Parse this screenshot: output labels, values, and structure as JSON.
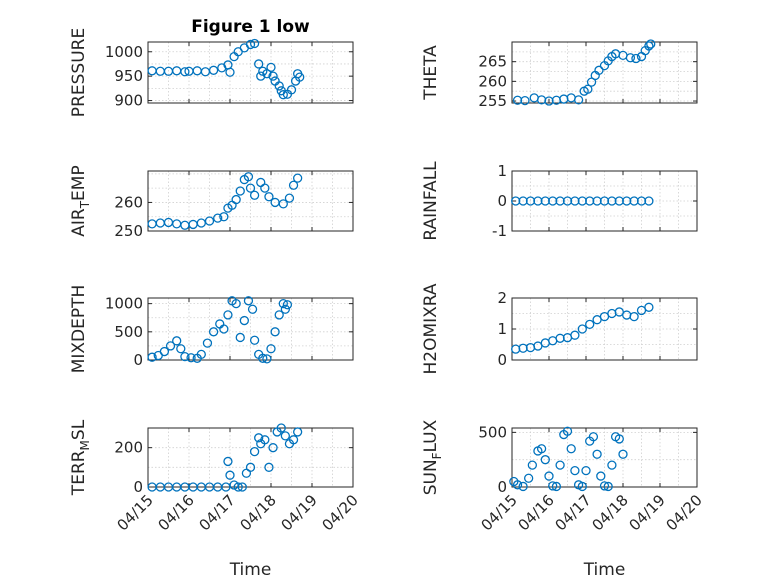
{
  "chart_data": [
    {
      "type": "scatter",
      "title": "Figure 1 low",
      "ylabel": "PRESSURE",
      "ylim": [
        895,
        1020
      ],
      "yticks": [
        900,
        950,
        1000
      ],
      "ytick_labels": [
        "900",
        "950",
        "1000"
      ],
      "xlim": [
        0,
        5
      ],
      "x_date_origin": "04/15",
      "xticks": [
        0,
        1,
        2,
        3,
        4,
        5
      ],
      "xtick_labels": [],
      "grid": true,
      "marker": "circle",
      "color": "#0072bd",
      "points": [
        [
          0.1,
          961
        ],
        [
          0.3,
          960
        ],
        [
          0.5,
          960
        ],
        [
          0.7,
          961
        ],
        [
          0.9,
          959
        ],
        [
          1.0,
          960
        ],
        [
          1.2,
          961
        ],
        [
          1.4,
          959
        ],
        [
          1.6,
          962
        ],
        [
          1.8,
          967
        ],
        [
          1.95,
          973
        ],
        [
          2.0,
          958
        ],
        [
          2.1,
          990
        ],
        [
          2.2,
          1000
        ],
        [
          2.35,
          1008
        ],
        [
          2.5,
          1015
        ],
        [
          2.6,
          1017
        ],
        [
          2.7,
          975
        ],
        [
          2.75,
          950
        ],
        [
          2.8,
          960
        ],
        [
          2.9,
          955
        ],
        [
          3.0,
          968
        ],
        [
          3.05,
          950
        ],
        [
          3.1,
          940
        ],
        [
          3.2,
          930
        ],
        [
          3.25,
          920
        ],
        [
          3.3,
          912
        ],
        [
          3.4,
          913
        ],
        [
          3.5,
          922
        ],
        [
          3.6,
          940
        ],
        [
          3.65,
          955
        ],
        [
          3.7,
          948
        ]
      ]
    },
    {
      "type": "scatter",
      "ylabel": "THETA",
      "ylim": [
        254.5,
        270
      ],
      "yticks": [
        255,
        260,
        265
      ],
      "ytick_labels": [
        "255",
        "260",
        "265"
      ],
      "xlim": [
        0,
        5
      ],
      "xticks": [
        0,
        1,
        2,
        3,
        4,
        5
      ],
      "xtick_labels": [],
      "grid": true,
      "points": [
        [
          0.15,
          255.2
        ],
        [
          0.35,
          255.1
        ],
        [
          0.6,
          255.8
        ],
        [
          0.8,
          255.3
        ],
        [
          1.0,
          255.0
        ],
        [
          1.2,
          255.2
        ],
        [
          1.4,
          255.5
        ],
        [
          1.6,
          255.8
        ],
        [
          1.8,
          255.3
        ],
        [
          1.95,
          257.5
        ],
        [
          2.05,
          258.0
        ],
        [
          2.15,
          259.8
        ],
        [
          2.25,
          261.5
        ],
        [
          2.35,
          262.8
        ],
        [
          2.5,
          264.0
        ],
        [
          2.6,
          265.2
        ],
        [
          2.7,
          266.3
        ],
        [
          2.8,
          267.0
        ],
        [
          3.0,
          266.6
        ],
        [
          3.2,
          266.0
        ],
        [
          3.35,
          265.8
        ],
        [
          3.5,
          266.3
        ],
        [
          3.6,
          267.8
        ],
        [
          3.7,
          269.0
        ],
        [
          3.75,
          269.5
        ]
      ]
    },
    {
      "type": "scatter",
      "ylabel": "AIR_TEMP",
      "ylim": [
        250,
        271
      ],
      "yticks": [
        250,
        260
      ],
      "ytick_labels": [
        "250",
        "260"
      ],
      "xlim": [
        0,
        5
      ],
      "xticks": [
        0,
        1,
        2,
        3,
        4,
        5
      ],
      "xtick_labels": [],
      "grid": true,
      "points": [
        [
          0.1,
          252.5
        ],
        [
          0.3,
          252.8
        ],
        [
          0.5,
          253.0
        ],
        [
          0.7,
          252.5
        ],
        [
          0.9,
          252.0
        ],
        [
          1.1,
          252.3
        ],
        [
          1.3,
          252.8
        ],
        [
          1.5,
          253.5
        ],
        [
          1.7,
          254.5
        ],
        [
          1.85,
          255.0
        ],
        [
          1.95,
          258.0
        ],
        [
          2.05,
          259.0
        ],
        [
          2.15,
          261.0
        ],
        [
          2.25,
          264.0
        ],
        [
          2.35,
          268.0
        ],
        [
          2.45,
          269.0
        ],
        [
          2.5,
          265.0
        ],
        [
          2.6,
          262.5
        ],
        [
          2.75,
          267.0
        ],
        [
          2.85,
          265.0
        ],
        [
          2.95,
          262.0
        ],
        [
          3.1,
          260.0
        ],
        [
          3.3,
          259.5
        ],
        [
          3.45,
          261.5
        ],
        [
          3.55,
          266.0
        ],
        [
          3.65,
          268.5
        ]
      ]
    },
    {
      "type": "scatter",
      "ylabel": "RAINFALL",
      "ylim": [
        -1,
        1
      ],
      "yticks": [
        -1,
        0,
        1
      ],
      "ytick_labels": [
        "-1",
        "0",
        "1"
      ],
      "xlim": [
        0,
        5
      ],
      "xticks": [
        0,
        1,
        2,
        3,
        4,
        5
      ],
      "xtick_labels": [],
      "grid": true,
      "points": [
        [
          0.1,
          0
        ],
        [
          0.3,
          0
        ],
        [
          0.5,
          0
        ],
        [
          0.7,
          0
        ],
        [
          0.9,
          0
        ],
        [
          1.1,
          0
        ],
        [
          1.3,
          0
        ],
        [
          1.5,
          0
        ],
        [
          1.7,
          0
        ],
        [
          1.9,
          0
        ],
        [
          2.1,
          0
        ],
        [
          2.3,
          0
        ],
        [
          2.5,
          0
        ],
        [
          2.7,
          0
        ],
        [
          2.9,
          0
        ],
        [
          3.1,
          0
        ],
        [
          3.3,
          0
        ],
        [
          3.5,
          0
        ],
        [
          3.7,
          0
        ]
      ]
    },
    {
      "type": "scatter",
      "ylabel": "MIXDEPTH",
      "ylim": [
        0,
        1100
      ],
      "yticks": [
        0,
        500,
        1000
      ],
      "ytick_labels": [
        "0",
        "500",
        "1000"
      ],
      "xlim": [
        0,
        5
      ],
      "xticks": [
        0,
        1,
        2,
        3,
        4,
        5
      ],
      "xtick_labels": [],
      "grid": true,
      "points": [
        [
          0.1,
          50
        ],
        [
          0.25,
          80
        ],
        [
          0.4,
          150
        ],
        [
          0.55,
          250
        ],
        [
          0.7,
          340
        ],
        [
          0.8,
          200
        ],
        [
          0.9,
          60
        ],
        [
          1.05,
          40
        ],
        [
          1.2,
          30
        ],
        [
          1.3,
          100
        ],
        [
          1.45,
          300
        ],
        [
          1.6,
          500
        ],
        [
          1.75,
          640
        ],
        [
          1.85,
          550
        ],
        [
          1.95,
          800
        ],
        [
          2.05,
          1050
        ],
        [
          2.15,
          1000
        ],
        [
          2.25,
          400
        ],
        [
          2.35,
          700
        ],
        [
          2.45,
          1050
        ],
        [
          2.55,
          900
        ],
        [
          2.6,
          350
        ],
        [
          2.7,
          100
        ],
        [
          2.8,
          30
        ],
        [
          2.9,
          20
        ],
        [
          3.0,
          200
        ],
        [
          3.1,
          500
        ],
        [
          3.2,
          800
        ],
        [
          3.3,
          1000
        ],
        [
          3.35,
          900
        ],
        [
          3.4,
          980
        ]
      ]
    },
    {
      "type": "scatter",
      "ylabel": "H2OMIXRA",
      "ylim": [
        0,
        2
      ],
      "yticks": [
        0,
        1,
        2
      ],
      "ytick_labels": [
        "0",
        "1",
        "2"
      ],
      "xlim": [
        0,
        5
      ],
      "xticks": [
        0,
        1,
        2,
        3,
        4,
        5
      ],
      "xtick_labels": [],
      "grid": true,
      "points": [
        [
          0.1,
          0.35
        ],
        [
          0.3,
          0.38
        ],
        [
          0.5,
          0.4
        ],
        [
          0.7,
          0.45
        ],
        [
          0.9,
          0.55
        ],
        [
          1.1,
          0.62
        ],
        [
          1.3,
          0.7
        ],
        [
          1.5,
          0.72
        ],
        [
          1.7,
          0.8
        ],
        [
          1.9,
          1.0
        ],
        [
          2.1,
          1.15
        ],
        [
          2.3,
          1.3
        ],
        [
          2.5,
          1.4
        ],
        [
          2.7,
          1.5
        ],
        [
          2.9,
          1.55
        ],
        [
          3.1,
          1.45
        ],
        [
          3.3,
          1.4
        ],
        [
          3.5,
          1.6
        ],
        [
          3.7,
          1.7
        ]
      ]
    },
    {
      "type": "scatter",
      "ylabel": "TERR_MSL",
      "ylim": [
        0,
        300
      ],
      "yticks": [
        0,
        200
      ],
      "ytick_labels": [
        "0",
        "200"
      ],
      "xlim": [
        0,
        5
      ],
      "xticks": [
        0,
        1,
        2,
        3,
        4,
        5
      ],
      "xtick_labels": [
        "04/15",
        "04/16",
        "04/17",
        "04/18",
        "04/19",
        "04/20"
      ],
      "xlabel": "Time",
      "grid": true,
      "points": [
        [
          0.1,
          0
        ],
        [
          0.3,
          0
        ],
        [
          0.5,
          0
        ],
        [
          0.7,
          0
        ],
        [
          0.9,
          0
        ],
        [
          1.1,
          0
        ],
        [
          1.3,
          0
        ],
        [
          1.5,
          0
        ],
        [
          1.7,
          0
        ],
        [
          1.9,
          0
        ],
        [
          1.95,
          130
        ],
        [
          2.0,
          60
        ],
        [
          2.1,
          10
        ],
        [
          2.2,
          0
        ],
        [
          2.3,
          0
        ],
        [
          2.4,
          70
        ],
        [
          2.5,
          100
        ],
        [
          2.6,
          180
        ],
        [
          2.7,
          250
        ],
        [
          2.75,
          220
        ],
        [
          2.85,
          240
        ],
        [
          2.95,
          100
        ],
        [
          3.05,
          200
        ],
        [
          3.15,
          280
        ],
        [
          3.25,
          300
        ],
        [
          3.35,
          260
        ],
        [
          3.45,
          220
        ],
        [
          3.55,
          240
        ],
        [
          3.65,
          280
        ]
      ]
    },
    {
      "type": "scatter",
      "ylabel": "SUN_FLUX",
      "ylim": [
        0,
        540
      ],
      "yticks": [
        0,
        500
      ],
      "ytick_labels": [
        "0",
        "500"
      ],
      "xlim": [
        0,
        5
      ],
      "xticks": [
        0,
        1,
        2,
        3,
        4,
        5
      ],
      "xtick_labels": [
        "04/15",
        "04/16",
        "04/17",
        "04/18",
        "04/19",
        "04/20"
      ],
      "xlabel": "Time",
      "grid": true,
      "points": [
        [
          0.05,
          50
        ],
        [
          0.15,
          20
        ],
        [
          0.3,
          5
        ],
        [
          0.45,
          80
        ],
        [
          0.55,
          200
        ],
        [
          0.7,
          330
        ],
        [
          0.8,
          350
        ],
        [
          0.9,
          250
        ],
        [
          1.0,
          100
        ],
        [
          1.1,
          10
        ],
        [
          1.2,
          5
        ],
        [
          1.3,
          200
        ],
        [
          1.4,
          480
        ],
        [
          1.5,
          510
        ],
        [
          1.6,
          350
        ],
        [
          1.7,
          150
        ],
        [
          1.8,
          20
        ],
        [
          1.9,
          5
        ],
        [
          2.0,
          150
        ],
        [
          2.1,
          420
        ],
        [
          2.2,
          460
        ],
        [
          2.3,
          300
        ],
        [
          2.4,
          100
        ],
        [
          2.5,
          10
        ],
        [
          2.6,
          5
        ],
        [
          2.7,
          200
        ],
        [
          2.8,
          460
        ],
        [
          2.9,
          440
        ],
        [
          3.0,
          300
        ]
      ]
    }
  ]
}
